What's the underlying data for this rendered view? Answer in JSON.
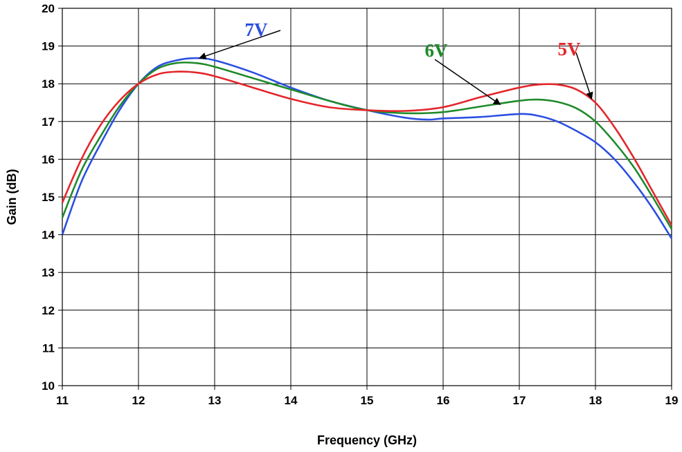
{
  "chart_data": {
    "type": "line",
    "title": "",
    "xlabel": "Frequency (GHz)",
    "ylabel": "Gain (dB)",
    "xlim": [
      11,
      19
    ],
    "ylim": [
      10,
      20
    ],
    "xticks": [
      "11",
      "12",
      "13",
      "14",
      "15",
      "16",
      "17",
      "18",
      "19"
    ],
    "yticks": [
      "10",
      "11",
      "12",
      "13",
      "14",
      "15",
      "16",
      "17",
      "18",
      "19",
      "20"
    ],
    "grid": true,
    "legend": "none",
    "series": [
      {
        "name": "7V",
        "color": "#2b4fe0",
        "x": [
          11,
          11.25,
          11.5,
          11.75,
          12,
          12.25,
          12.5,
          12.75,
          13,
          13.5,
          14,
          14.5,
          15,
          15.5,
          15.8,
          16,
          16.5,
          17,
          17.25,
          17.5,
          17.75,
          18,
          18.25,
          18.5,
          18.75,
          19
        ],
        "y": [
          14.0,
          15.4,
          16.4,
          17.3,
          18.0,
          18.45,
          18.62,
          18.68,
          18.62,
          18.3,
          17.9,
          17.55,
          17.3,
          17.1,
          17.05,
          17.08,
          17.12,
          17.2,
          17.15,
          17.0,
          16.75,
          16.45,
          16.0,
          15.4,
          14.7,
          13.9
        ]
      },
      {
        "name": "6V",
        "color": "#1f8a2a",
        "x": [
          11,
          11.25,
          11.5,
          11.75,
          12,
          12.25,
          12.5,
          12.75,
          13,
          13.5,
          14,
          14.5,
          15,
          15.5,
          16,
          16.5,
          17,
          17.25,
          17.5,
          17.75,
          18,
          18.25,
          18.5,
          18.75,
          19
        ],
        "y": [
          14.45,
          15.7,
          16.6,
          17.4,
          18.0,
          18.4,
          18.55,
          18.55,
          18.45,
          18.15,
          17.85,
          17.55,
          17.3,
          17.22,
          17.25,
          17.4,
          17.55,
          17.58,
          17.52,
          17.35,
          17.0,
          16.45,
          15.8,
          15.0,
          14.15
        ]
      },
      {
        "name": "5V",
        "color": "#e3262b",
        "x": [
          11,
          11.25,
          11.5,
          11.75,
          12,
          12.25,
          12.5,
          12.75,
          13,
          13.5,
          14,
          14.5,
          15,
          15.5,
          16,
          16.5,
          17,
          17.25,
          17.5,
          17.75,
          18,
          18.25,
          18.5,
          18.75,
          19
        ],
        "y": [
          14.85,
          16.0,
          16.9,
          17.55,
          18.0,
          18.25,
          18.32,
          18.3,
          18.2,
          17.9,
          17.6,
          17.38,
          17.3,
          17.28,
          17.38,
          17.65,
          17.9,
          17.98,
          17.98,
          17.85,
          17.5,
          16.85,
          16.05,
          15.15,
          14.25
        ]
      }
    ],
    "annotations": [
      {
        "text": "7V",
        "color": "#2b4fe0",
        "arrow_to": [
          12.8,
          18.68
        ]
      },
      {
        "text": "6V",
        "color": "#1f8a2a",
        "arrow_to": [
          16.75,
          17.45
        ]
      },
      {
        "text": "5V",
        "color": "#e3262b",
        "arrow_to": [
          17.95,
          17.6
        ]
      }
    ]
  }
}
